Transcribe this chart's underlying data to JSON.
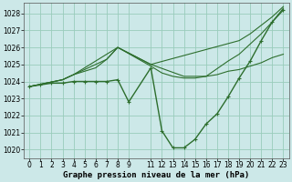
{
  "background_color": "#cce8e8",
  "grid_color": "#99ccbb",
  "line_color": "#2d6e2d",
  "marker_color": "#2d6e2d",
  "ylabel_values": [
    1020,
    1021,
    1022,
    1023,
    1024,
    1025,
    1026,
    1027,
    1028
  ],
  "xlabel_label": "Graphe pression niveau de la mer (hPa)",
  "xlim": [
    -0.5,
    23.5
  ],
  "ylim": [
    1019.5,
    1028.6
  ],
  "series": [
    {
      "x": [
        0,
        1,
        2,
        3,
        4,
        5,
        6,
        7,
        8,
        9,
        11,
        12,
        13,
        14,
        15,
        16,
        17,
        18,
        19,
        20,
        21,
        22,
        23
      ],
      "y": [
        1023.7,
        1023.8,
        1023.9,
        1023.9,
        1024.0,
        1024.0,
        1024.0,
        1024.0,
        1024.1,
        1022.8,
        1024.8,
        1021.1,
        1020.1,
        1020.1,
        1020.6,
        1021.5,
        1022.1,
        1023.1,
        1024.2,
        1025.2,
        1026.4,
        1027.5,
        1028.2
      ],
      "marker": true,
      "lw": 1.0
    },
    {
      "x": [
        0,
        3,
        4,
        5,
        6,
        7,
        8,
        11,
        12,
        13,
        14,
        15,
        16,
        17,
        18,
        19,
        20,
        21,
        22,
        23
      ],
      "y": [
        1023.7,
        1024.1,
        1024.4,
        1024.6,
        1024.8,
        1025.3,
        1026.0,
        1024.9,
        1024.5,
        1024.3,
        1024.2,
        1024.2,
        1024.3,
        1024.4,
        1024.6,
        1024.7,
        1024.9,
        1025.1,
        1025.4,
        1025.6
      ],
      "marker": false,
      "lw": 0.8
    },
    {
      "x": [
        0,
        3,
        4,
        5,
        6,
        7,
        8,
        11,
        14,
        16,
        18,
        19,
        20,
        21,
        22,
        23
      ],
      "y": [
        1023.7,
        1024.1,
        1024.4,
        1024.7,
        1025.0,
        1025.3,
        1026.0,
        1025.0,
        1024.3,
        1024.3,
        1025.2,
        1025.6,
        1026.2,
        1026.8,
        1027.5,
        1028.3
      ],
      "marker": false,
      "lw": 0.8
    },
    {
      "x": [
        0,
        3,
        4,
        8,
        11,
        19,
        20,
        21,
        22,
        23
      ],
      "y": [
        1023.7,
        1024.1,
        1024.4,
        1026.0,
        1025.0,
        1026.4,
        1026.8,
        1027.3,
        1027.8,
        1028.4
      ],
      "marker": false,
      "lw": 0.8
    }
  ],
  "xticks": [
    0,
    1,
    2,
    3,
    4,
    5,
    6,
    7,
    8,
    9,
    11,
    12,
    13,
    14,
    15,
    16,
    17,
    18,
    19,
    20,
    21,
    22,
    23
  ],
  "xlabel_fontsize": 6.5,
  "tick_fontsize": 5.5
}
